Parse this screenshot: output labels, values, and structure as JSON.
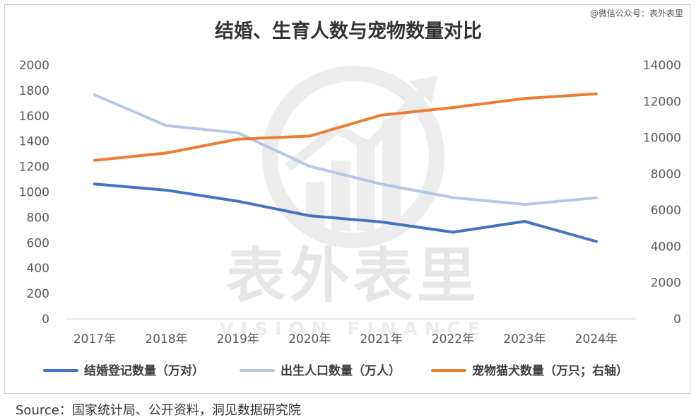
{
  "credit": "@微信公众号：表外表里",
  "watermark": {
    "cn": "表外表里",
    "en": "VISION FINANCE"
  },
  "source": "Source：国家统计局、公开资料，洞见数据研究院",
  "chart_data": {
    "type": "line",
    "title": "结婚、生育人数与宠物数量对比",
    "categories": [
      "2017年",
      "2018年",
      "2019年",
      "2020年",
      "2021年",
      "2022年",
      "2023年",
      "2024年"
    ],
    "y_left": {
      "ticks": [
        0,
        200,
        400,
        600,
        800,
        1000,
        1200,
        1400,
        1600,
        1800,
        2000
      ],
      "ylim": [
        0,
        2000
      ]
    },
    "y_right": {
      "ticks": [
        0,
        2000,
        4000,
        6000,
        8000,
        10000,
        12000,
        14000
      ],
      "ylim": [
        0,
        14000
      ]
    },
    "grid": false,
    "legend_position": "bottom",
    "series": [
      {
        "name": "结婚登记数量（万对）",
        "axis": "left",
        "color": "#4472C4",
        "values": [
          1063,
          1014,
          927,
          813,
          764,
          683,
          768,
          610
        ]
      },
      {
        "name": "出生人口数量（万人）",
        "axis": "left",
        "color": "#B4C7E7",
        "values": [
          1765,
          1523,
          1465,
          1202,
          1062,
          956,
          902,
          954
        ]
      },
      {
        "name": "宠物猫犬数量（万只；右轴）",
        "axis": "right",
        "color": "#ED7D31",
        "values": [
          8746,
          9149,
          9915,
          10084,
          11235,
          11655,
          12155,
          12411
        ]
      }
    ]
  }
}
